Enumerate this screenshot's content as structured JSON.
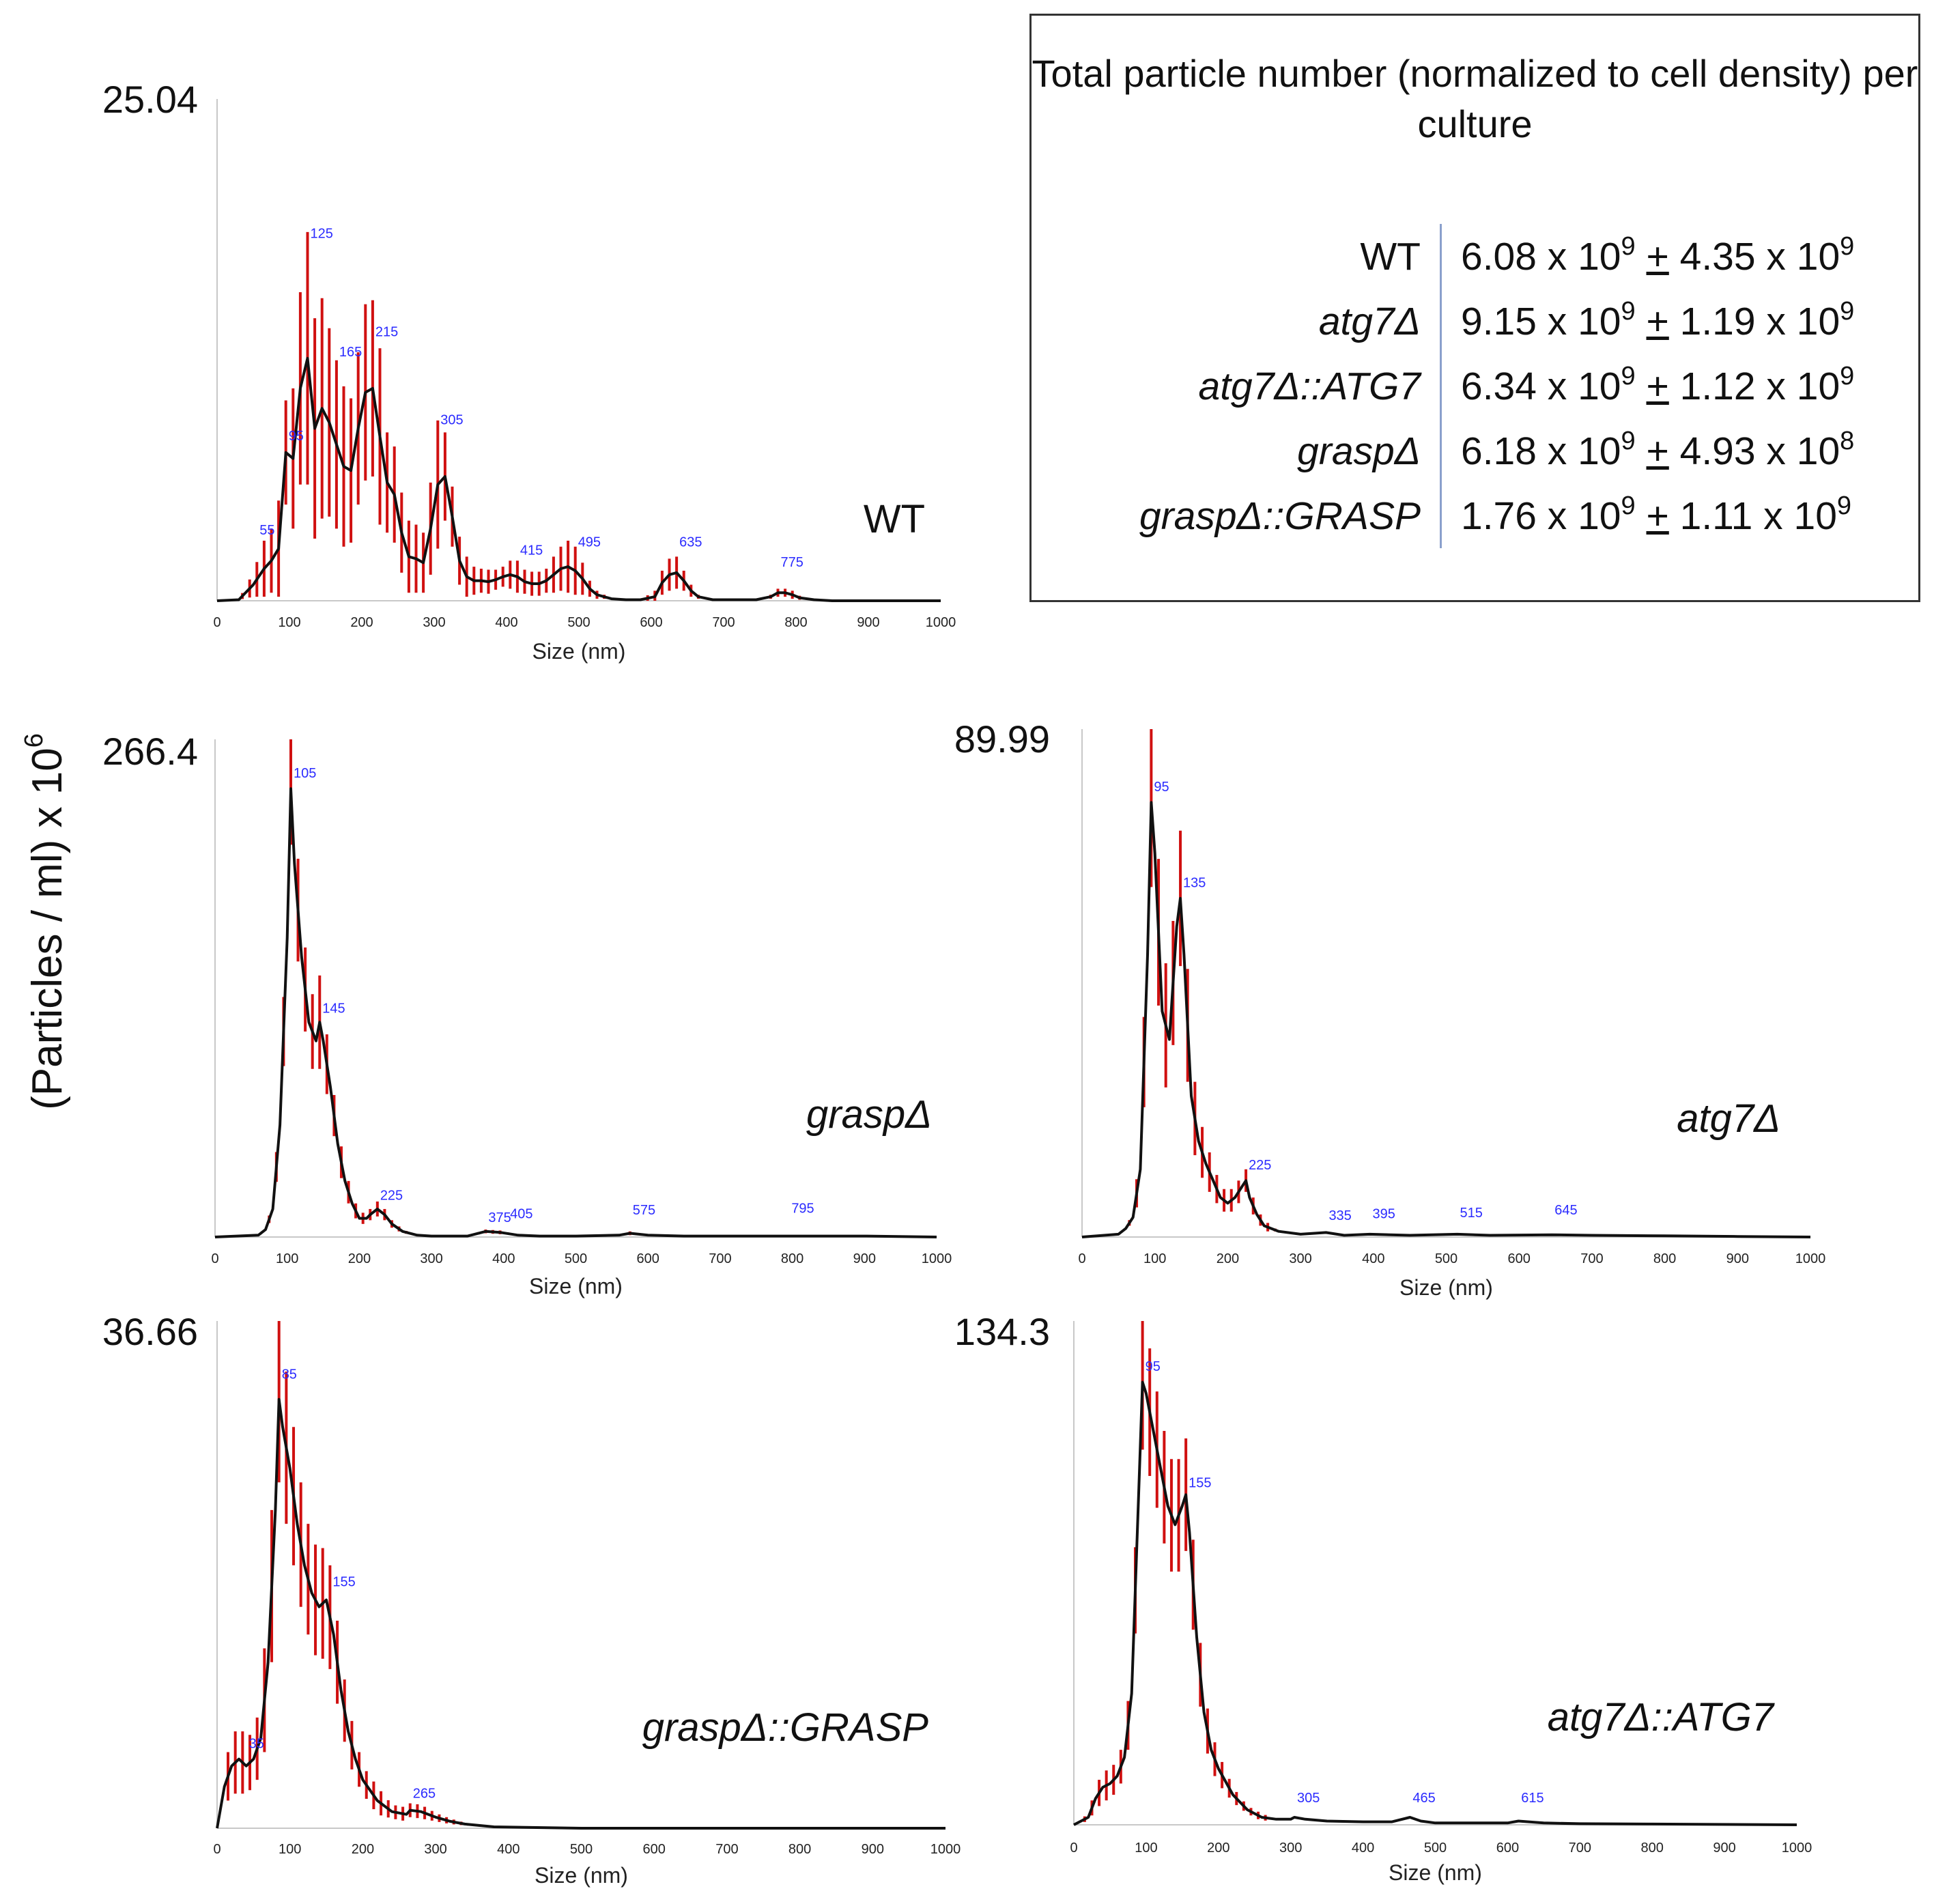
{
  "y_axis_label": "(Particles / ml) x 10",
  "y_axis_label_sup": "6",
  "colors": {
    "mean_line": "#111111",
    "error_bars": "#d01010",
    "peak_labels": "#2b2bff",
    "axis": "#c8c8c8"
  },
  "legend": {
    "title": "Total particle number (normalized to cell density) per culture",
    "rows": [
      {
        "name": "WT",
        "italic": false,
        "mean": "6.08",
        "mean_exp": "9",
        "err": "4.35",
        "err_exp": "9"
      },
      {
        "name": "atg7Δ",
        "italic": true,
        "mean": "9.15",
        "mean_exp": "9",
        "err": "1.19",
        "err_exp": "9"
      },
      {
        "name": "atg7Δ::ATG7",
        "italic": true,
        "mean": "6.34",
        "mean_exp": "9",
        "err": "1.12",
        "err_exp": "9"
      },
      {
        "name": "graspΔ",
        "italic": true,
        "mean": "6.18",
        "mean_exp": "9",
        "err": "4.93",
        "err_exp": "8"
      },
      {
        "name": "graspΔ::GRASP",
        "italic": true,
        "mean": "1.76",
        "mean_exp": "9",
        "err": "1.11",
        "err_exp": "9"
      }
    ],
    "times": "x 10",
    "pm": "+"
  },
  "chart_data": [
    {
      "type": "line",
      "title": "WT",
      "italic": false,
      "xlabel": "Size (nm)",
      "ylabel": "(Particles / ml) x 10^6",
      "ymax_label": "25.04",
      "ylim": [
        0,
        25.04
      ],
      "xlim": [
        0,
        1000
      ],
      "xticks": [
        0,
        100,
        200,
        300,
        400,
        500,
        600,
        700,
        800,
        900,
        1000
      ],
      "series": [
        {
          "name": "WT",
          "x": [
            0,
            30,
            50,
            65,
            75,
            85,
            95,
            105,
            115,
            125,
            135,
            145,
            155,
            165,
            175,
            185,
            195,
            205,
            215,
            225,
            235,
            245,
            255,
            265,
            275,
            285,
            295,
            305,
            315,
            325,
            335,
            345,
            355,
            365,
            375,
            385,
            395,
            405,
            415,
            425,
            435,
            445,
            455,
            465,
            475,
            485,
            495,
            505,
            515,
            525,
            545,
            565,
            585,
            605,
            615,
            625,
            635,
            645,
            655,
            665,
            685,
            705,
            725,
            745,
            765,
            775,
            785,
            795,
            805,
            825,
            850,
            900,
            1000
          ],
          "y": [
            0,
            0.05,
            0.8,
            1.6,
            2,
            2.6,
            7.4,
            7.1,
            10.6,
            12.1,
            8.6,
            9.6,
            8.9,
            7.8,
            6.7,
            6.5,
            8.6,
            10.4,
            10.6,
            8.2,
            5.9,
            5.3,
            3.4,
            2.2,
            2.1,
            1.9,
            3.6,
            5.8,
            6.2,
            4.2,
            2,
            1.2,
            1,
            1,
            0.95,
            1.05,
            1.2,
            1.3,
            1.2,
            0.95,
            0.85,
            0.85,
            1,
            1.3,
            1.6,
            1.7,
            1.5,
            1.1,
            0.6,
            0.3,
            0.1,
            0.05,
            0.05,
            0.2,
            0.9,
            1.3,
            1.4,
            1,
            0.5,
            0.2,
            0.05,
            0.05,
            0.05,
            0.05,
            0.2,
            0.4,
            0.4,
            0.3,
            0.15,
            0.05,
            0,
            0,
            0
          ],
          "err": [
            0,
            0,
            0.6,
            1.4,
            1.6,
            2.4,
            2.6,
            3.5,
            4.8,
            6.3,
            5.5,
            5.5,
            4.7,
            4.2,
            4,
            3.6,
            3.8,
            4.4,
            4.4,
            4.4,
            2.5,
            2.4,
            2,
            1.8,
            1.7,
            1.5,
            2.3,
            3.2,
            2.2,
            1.5,
            1.2,
            1,
            0.7,
            0.6,
            0.6,
            0.5,
            0.5,
            0.7,
            0.8,
            0.6,
            0.6,
            0.6,
            0.6,
            0.9,
            1.1,
            1.3,
            1.2,
            0.8,
            0.4,
            0.2,
            0,
            0,
            0,
            0.3,
            0.6,
            0.8,
            0.8,
            0.5,
            0.3,
            0.1,
            0,
            0,
            0,
            0,
            0.1,
            0.2,
            0.2,
            0.2,
            0.1,
            0,
            0,
            0,
            0
          ]
        }
      ],
      "peak_labels": [
        {
          "x": 55,
          "y": 3.3,
          "text": "55"
        },
        {
          "x": 95,
          "y": 8,
          "text": "95"
        },
        {
          "x": 125,
          "y": 18.1,
          "text": "125"
        },
        {
          "x": 165,
          "y": 12.2,
          "text": "165"
        },
        {
          "x": 215,
          "y": 13.2,
          "text": "215"
        },
        {
          "x": 305,
          "y": 8.8,
          "text": "305"
        },
        {
          "x": 415,
          "y": 2.3,
          "text": "415"
        },
        {
          "x": 495,
          "y": 2.7,
          "text": "495"
        },
        {
          "x": 635,
          "y": 2.7,
          "text": "635"
        },
        {
          "x": 775,
          "y": 1.7,
          "text": "775"
        }
      ]
    },
    {
      "type": "line",
      "title": "graspΔ",
      "italic": true,
      "xlabel": "Size (nm)",
      "ylabel": "(Particles / ml) x 10^6",
      "ymax_label": "266.4",
      "ylim": [
        0,
        266.4
      ],
      "xlim": [
        0,
        1000
      ],
      "xticks": [
        0,
        100,
        200,
        300,
        400,
        500,
        600,
        700,
        800,
        900,
        1000
      ],
      "series": [
        {
          "name": "graspΔ",
          "x": [
            0,
            60,
            70,
            80,
            90,
            100,
            105,
            110,
            120,
            130,
            140,
            145,
            150,
            160,
            170,
            180,
            190,
            200,
            210,
            215,
            225,
            235,
            245,
            260,
            280,
            300,
            350,
            375,
            395,
            420,
            450,
            500,
            560,
            575,
            600,
            650,
            700,
            800,
            900,
            1000
          ],
          "y": [
            0,
            1,
            4,
            15,
            60,
            160,
            240,
            200,
            150,
            115,
            105,
            115,
            105,
            80,
            50,
            30,
            18,
            10,
            10,
            12,
            15,
            12,
            7,
            3,
            1,
            0.5,
            0.5,
            3,
            2.5,
            1,
            0.5,
            0.5,
            1,
            2,
            1,
            0.5,
            0.5,
            0.5,
            0.5,
            0
          ],
          "err": [
            0,
            0,
            0,
            4,
            12,
            25,
            30,
            30,
            25,
            20,
            20,
            25,
            20,
            12,
            10,
            7,
            5,
            3,
            3,
            3,
            4,
            3,
            2,
            1,
            0,
            0,
            0,
            1,
            1,
            0,
            0,
            0,
            0,
            1,
            0,
            0,
            0,
            0,
            0,
            0
          ]
        }
      ],
      "peak_labels": [
        {
          "x": 105,
          "y": 246,
          "text": "105"
        },
        {
          "x": 145,
          "y": 120,
          "text": "145"
        },
        {
          "x": 225,
          "y": 20,
          "text": "225"
        },
        {
          "x": 375,
          "y": 8,
          "text": "375"
        },
        {
          "x": 405,
          "y": 10,
          "text": "405"
        },
        {
          "x": 575,
          "y": 12,
          "text": "575"
        },
        {
          "x": 795,
          "y": 13,
          "text": "795"
        }
      ]
    },
    {
      "type": "line",
      "title": "atg7Δ",
      "italic": true,
      "xlabel": "Size (nm)",
      "ylabel": "(Particles / ml) x 10^6",
      "ymax_label": "89.99",
      "ylim": [
        0,
        89.99
      ],
      "xlim": [
        0,
        1000
      ],
      "xticks": [
        0,
        100,
        200,
        300,
        400,
        500,
        600,
        700,
        800,
        900,
        1000
      ],
      "series": [
        {
          "name": "atg7Δ",
          "x": [
            0,
            50,
            60,
            70,
            80,
            90,
            95,
            100,
            110,
            120,
            130,
            135,
            140,
            150,
            160,
            170,
            180,
            190,
            200,
            210,
            220,
            225,
            230,
            240,
            250,
            270,
            300,
            335,
            360,
            395,
            450,
            515,
            560,
            645,
            700,
            800,
            900,
            1000
          ],
          "y": [
            0,
            0.5,
            1.5,
            3.5,
            12,
            50,
            77,
            68,
            40,
            35,
            55,
            60,
            50,
            25,
            17,
            13,
            10,
            7,
            6,
            7,
            9,
            10,
            7,
            4,
            2,
            1,
            0.5,
            0.8,
            0.3,
            0.5,
            0.3,
            0.5,
            0.3,
            0.4,
            0.3,
            0.2,
            0.1,
            0
          ],
          "err": [
            0,
            0,
            0,
            1,
            4,
            12,
            15,
            14,
            12,
            10,
            12,
            12,
            12,
            8,
            5,
            4,
            3,
            2,
            2,
            2,
            2,
            2,
            2,
            1,
            1,
            0,
            0,
            0,
            0,
            0,
            0,
            0,
            0,
            0,
            0,
            0,
            0,
            0
          ]
        }
      ],
      "peak_labels": [
        {
          "x": 95,
          "y": 79,
          "text": "95"
        },
        {
          "x": 135,
          "y": 62,
          "text": "135"
        },
        {
          "x": 225,
          "y": 12,
          "text": "225"
        },
        {
          "x": 335,
          "y": 3,
          "text": "335"
        },
        {
          "x": 395,
          "y": 3.3,
          "text": "395"
        },
        {
          "x": 515,
          "y": 3.5,
          "text": "515"
        },
        {
          "x": 645,
          "y": 4,
          "text": "645"
        }
      ]
    },
    {
      "type": "line",
      "title": "graspΔ::GRASP",
      "italic": true,
      "xlabel": "Size (nm)",
      "ylabel": "(Particles / ml) x 10^6",
      "ymax_label": "36.66",
      "ylim": [
        0,
        36.66
      ],
      "xlim": [
        0,
        1000
      ],
      "xticks": [
        0,
        100,
        200,
        300,
        400,
        500,
        600,
        700,
        800,
        900,
        1000
      ],
      "series": [
        {
          "name": "graspΔ::GRASP",
          "x": [
            0,
            10,
            20,
            30,
            40,
            50,
            60,
            70,
            80,
            85,
            90,
            100,
            110,
            120,
            130,
            140,
            150,
            160,
            170,
            180,
            190,
            200,
            220,
            240,
            260,
            265,
            280,
            300,
            320,
            340,
            380,
            500,
            700,
            1000
          ],
          "y": [
            0,
            3,
            4.5,
            5,
            4.5,
            5,
            6.5,
            12,
            23,
            31,
            29,
            26,
            22,
            19,
            17,
            16,
            16.5,
            14,
            10,
            7,
            5,
            3.5,
            2,
            1.2,
            1,
            1.3,
            1.2,
            0.8,
            0.5,
            0.3,
            0.1,
            0,
            0,
            0
          ],
          "err": [
            0,
            1.5,
            2,
            2.5,
            2,
            2,
            2.5,
            5,
            6,
            6,
            6,
            5,
            5,
            4,
            4,
            4,
            4,
            3.5,
            2.5,
            2,
            1.5,
            1,
            1,
            0.5,
            0.5,
            0.5,
            0.5,
            0.3,
            0.2,
            0.1,
            0,
            0,
            0,
            0
          ]
        }
      ],
      "peak_labels": [
        {
          "x": 40,
          "y": 5.8,
          "text": "35"
        },
        {
          "x": 85,
          "y": 32.5,
          "text": "85"
        },
        {
          "x": 155,
          "y": 17.5,
          "text": "155"
        },
        {
          "x": 265,
          "y": 2.2,
          "text": "265"
        }
      ]
    },
    {
      "type": "line",
      "title": "atg7Δ::ATG7",
      "italic": true,
      "xlabel": "Size (nm)",
      "ylabel": "(Particles / ml) x 10^6",
      "ymax_label": "134.3",
      "ylim": [
        0,
        134.3
      ],
      "xlim": [
        0,
        1000
      ],
      "xticks": [
        0,
        100,
        200,
        300,
        400,
        500,
        600,
        700,
        800,
        900,
        1000
      ],
      "series": [
        {
          "name": "atg7Δ::ATG7",
          "x": [
            0,
            20,
            30,
            40,
            50,
            60,
            70,
            80,
            90,
            95,
            100,
            110,
            120,
            130,
            140,
            150,
            155,
            160,
            170,
            180,
            190,
            200,
            220,
            240,
            260,
            280,
            300,
            305,
            320,
            350,
            400,
            440,
            465,
            480,
            500,
            550,
            600,
            615,
            650,
            700,
            800,
            1000
          ],
          "y": [
            0,
            2,
            7,
            10,
            11,
            13,
            18,
            35,
            90,
            118,
            115,
            105,
            95,
            85,
            80,
            85,
            88,
            78,
            50,
            30,
            20,
            15,
            8,
            4,
            2,
            1.5,
            1.5,
            2,
            1.5,
            1,
            0.8,
            0.8,
            2,
            1,
            0.5,
            0.5,
            0.5,
            1,
            0.5,
            0.3,
            0.2,
            0
          ],
          "err": [
            0,
            1,
            3,
            4,
            4,
            4,
            5,
            8,
            15,
            18,
            18,
            16,
            15,
            15,
            15,
            15,
            15,
            14,
            10,
            7,
            5,
            4,
            2,
            1,
            1,
            0,
            0,
            0,
            0,
            0,
            0,
            0,
            0,
            0,
            0,
            0,
            0,
            0,
            0,
            0,
            0,
            0
          ]
        }
      ],
      "peak_labels": [
        {
          "x": 95,
          "y": 121,
          "text": "95"
        },
        {
          "x": 155,
          "y": 90,
          "text": "155"
        },
        {
          "x": 305,
          "y": 6,
          "text": "305"
        },
        {
          "x": 465,
          "y": 6,
          "text": "465"
        },
        {
          "x": 615,
          "y": 6,
          "text": "615"
        }
      ]
    }
  ]
}
